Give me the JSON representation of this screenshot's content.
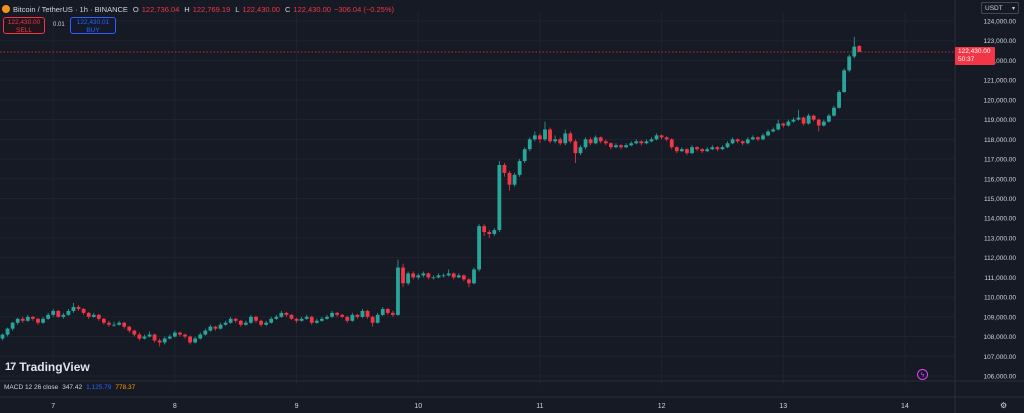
{
  "header": {
    "symbol": "Bitcoin / TetherUS · 1h · BINANCE",
    "open_label": "O",
    "open_value": "122,736.04",
    "high_label": "H",
    "high_value": "122,769.19",
    "low_label": "L",
    "low_value": "122,430.00",
    "close_label": "C",
    "close_value": "122,430.00",
    "change": "−306.04 (−0.25%)"
  },
  "trade": {
    "sell_price": "122,430.00",
    "sell_label": "SELL",
    "spread": "0.01",
    "buy_price": "122,430.01",
    "buy_label": "BUY"
  },
  "currency": "USDT",
  "current_price": {
    "value": "122,430.00",
    "countdown": "50:37"
  },
  "brand": "TradingView",
  "indicator": {
    "name": "MACD 12 26 close",
    "v1": "347.42",
    "v2": "1,125.79",
    "v3": "778.37"
  },
  "colors": {
    "background": "#161a25",
    "up": "#26a69a",
    "down": "#f23645",
    "grid": "#1f2330",
    "axis_text": "#d1d4dc"
  },
  "icons": [
    "bitcoin-icon",
    "chevron-down-icon",
    "alert-icon",
    "gear-icon"
  ],
  "chart_data": {
    "type": "candlestick",
    "interval": "1h",
    "ylim": [
      105800,
      124300
    ],
    "y_ticks": [
      106000,
      107000,
      108000,
      109000,
      110000,
      111000,
      112000,
      113000,
      114000,
      115000,
      116000,
      117000,
      118000,
      119000,
      120000,
      121000,
      122000,
      123000,
      124000
    ],
    "y_tick_labels": [
      "106,000.00",
      "107,000.00",
      "108,000.00",
      "109,000.00",
      "110,000.00",
      "111,000.00",
      "112,000.00",
      "113,000.00",
      "114,000.00",
      "115,000.00",
      "116,000.00",
      "117,000.00",
      "118,000.00",
      "119,000.00",
      "120,000.00",
      "121,000.00",
      "122,000.00",
      "123,000.00",
      "124,000.00"
    ],
    "x_day_labels": [
      "7",
      "8",
      "9",
      "10",
      "11",
      "12",
      "13",
      "14"
    ],
    "x_day_index": [
      10,
      34,
      58,
      82,
      106,
      130,
      154,
      178
    ],
    "last_close": 122430,
    "closes": [
      108100,
      108400,
      108700,
      108900,
      108800,
      109000,
      108900,
      108700,
      108900,
      109100,
      109300,
      109000,
      109100,
      109300,
      109500,
      109400,
      109200,
      109000,
      109100,
      108900,
      108700,
      108600,
      108600,
      108700,
      108500,
      108300,
      108100,
      107900,
      108000,
      108100,
      107800,
      107700,
      107900,
      108000,
      108200,
      108100,
      108000,
      107700,
      107900,
      108100,
      108300,
      108500,
      108400,
      108600,
      108700,
      108900,
      108800,
      108600,
      108700,
      109000,
      108800,
      108600,
      108700,
      108900,
      109000,
      109200,
      109100,
      108900,
      108800,
      108900,
      109000,
      108700,
      108800,
      108900,
      109000,
      109200,
      109100,
      109000,
      108800,
      109100,
      109000,
      109300,
      109000,
      108700,
      109100,
      109400,
      109200,
      109100,
      111500,
      110700,
      111200,
      111000,
      111100,
      111200,
      111000,
      111000,
      111100,
      111100,
      111200,
      111000,
      111100,
      110900,
      110700,
      111400,
      113600,
      113300,
      113200,
      113400,
      116700,
      116300,
      115700,
      116200,
      116900,
      117500,
      118000,
      118200,
      118000,
      118500,
      117900,
      118000,
      117800,
      118300,
      117900,
      117300,
      117600,
      118000,
      117800,
      118100,
      117900,
      117800,
      117600,
      117700,
      117600,
      117700,
      117800,
      117900,
      117800,
      117900,
      118000,
      118200,
      118100,
      118000,
      117600,
      117400,
      117500,
      117300,
      117600,
      117500,
      117400,
      117500,
      117600,
      117500,
      117600,
      117800,
      118000,
      117900,
      117800,
      118000,
      118100,
      118000,
      118200,
      118400,
      118500,
      118800,
      118700,
      118900,
      119000,
      119100,
      118800,
      119200,
      119000,
      118700,
      118900,
      119200,
      119600,
      120400,
      121500,
      122200,
      122700,
      122430
    ],
    "candles": [
      [
        107900,
        108150,
        107800,
        108100
      ],
      [
        108100,
        108450,
        108000,
        108400
      ],
      [
        108400,
        108750,
        108300,
        108700
      ],
      [
        108700,
        108950,
        108600,
        108900
      ],
      [
        108900,
        109000,
        108700,
        108800
      ],
      [
        108800,
        109100,
        108750,
        109000
      ],
      [
        109000,
        109050,
        108800,
        108900
      ],
      [
        108900,
        108950,
        108600,
        108700
      ],
      [
        108700,
        109000,
        108650,
        108900
      ],
      [
        108900,
        109200,
        108850,
        109100
      ],
      [
        109100,
        109400,
        109000,
        109300
      ],
      [
        109300,
        109350,
        108950,
        109000
      ],
      [
        109000,
        109200,
        108900,
        109100
      ],
      [
        109100,
        109400,
        109050,
        109300
      ],
      [
        109300,
        109700,
        109200,
        109500
      ],
      [
        109500,
        109600,
        109300,
        109400
      ],
      [
        109400,
        109450,
        109100,
        109200
      ],
      [
        109200,
        109250,
        108900,
        109000
      ],
      [
        109000,
        109200,
        108950,
        109100
      ],
      [
        109100,
        109150,
        108800,
        108900
      ],
      [
        108900,
        108950,
        108600,
        108700
      ],
      [
        108700,
        108800,
        108500,
        108600
      ],
      [
        108600,
        108750,
        108500,
        108600
      ],
      [
        108600,
        108800,
        108550,
        108700
      ],
      [
        108700,
        108750,
        108400,
        108500
      ],
      [
        108500,
        108550,
        108200,
        108300
      ],
      [
        108300,
        108350,
        108000,
        108100
      ],
      [
        108100,
        108200,
        107800,
        107900
      ],
      [
        107900,
        108100,
        107850,
        108000
      ],
      [
        108000,
        108250,
        107950,
        108100
      ],
      [
        108100,
        108150,
        107700,
        107800
      ],
      [
        107800,
        107900,
        107500,
        107700
      ],
      [
        107700,
        108000,
        107600,
        107900
      ],
      [
        107900,
        108100,
        107850,
        108000
      ],
      [
        108000,
        108300,
        107950,
        108200
      ],
      [
        108200,
        108250,
        108000,
        108100
      ],
      [
        108100,
        108150,
        107900,
        108000
      ],
      [
        108000,
        108050,
        107600,
        107700
      ],
      [
        107700,
        108000,
        107650,
        107900
      ],
      [
        107900,
        108200,
        107850,
        108100
      ],
      [
        108100,
        108400,
        108050,
        108300
      ],
      [
        108300,
        108600,
        108250,
        108500
      ],
      [
        108500,
        108550,
        108300,
        108400
      ],
      [
        108400,
        108700,
        108350,
        108600
      ],
      [
        108600,
        108800,
        108550,
        108700
      ],
      [
        108700,
        109000,
        108650,
        108900
      ],
      [
        108900,
        108950,
        108700,
        108800
      ],
      [
        108800,
        108850,
        108500,
        108600
      ],
      [
        108600,
        108800,
        108550,
        108700
      ],
      [
        108700,
        109100,
        108650,
        109000
      ],
      [
        109000,
        109050,
        108700,
        108800
      ],
      [
        108800,
        108850,
        108500,
        108600
      ],
      [
        108600,
        108800,
        108550,
        108700
      ],
      [
        108700,
        109000,
        108650,
        108900
      ],
      [
        108900,
        109100,
        108850,
        109000
      ],
      [
        109000,
        109300,
        108950,
        109200
      ],
      [
        109200,
        109250,
        109000,
        109100
      ],
      [
        109100,
        109150,
        108850,
        108900
      ],
      [
        108900,
        108950,
        108700,
        108800
      ],
      [
        108800,
        109000,
        108750,
        108900
      ],
      [
        108900,
        109100,
        108850,
        109000
      ],
      [
        109000,
        109050,
        108600,
        108700
      ],
      [
        108700,
        108900,
        108650,
        108800
      ],
      [
        108800,
        109000,
        108750,
        108900
      ],
      [
        108900,
        109100,
        108850,
        109000
      ],
      [
        109000,
        109300,
        108950,
        109200
      ],
      [
        109200,
        109250,
        109000,
        109100
      ],
      [
        109100,
        109150,
        108950,
        109000
      ],
      [
        109000,
        109050,
        108700,
        108800
      ],
      [
        108800,
        109200,
        108750,
        109100
      ],
      [
        109100,
        109150,
        108900,
        109000
      ],
      [
        109000,
        109400,
        108950,
        109300
      ],
      [
        109300,
        109350,
        108900,
        109000
      ],
      [
        109000,
        109050,
        108500,
        108700
      ],
      [
        108700,
        109200,
        108650,
        109100
      ],
      [
        109100,
        109500,
        109050,
        109400
      ],
      [
        109400,
        109450,
        109100,
        109200
      ],
      [
        109200,
        109300,
        109000,
        109100
      ],
      [
        109100,
        111900,
        109050,
        111500
      ],
      [
        111500,
        111700,
        110500,
        110700
      ],
      [
        110700,
        111300,
        110600,
        111200
      ],
      [
        111200,
        111300,
        110900,
        111000
      ],
      [
        111000,
        111200,
        110900,
        111100
      ],
      [
        111100,
        111300,
        111000,
        111200
      ],
      [
        111200,
        111250,
        110900,
        111000
      ],
      [
        111000,
        111100,
        110900,
        111000
      ],
      [
        111000,
        111200,
        110950,
        111100
      ],
      [
        111100,
        111200,
        111000,
        111100
      ],
      [
        111100,
        111400,
        111050,
        111200
      ],
      [
        111200,
        111250,
        110900,
        111000
      ],
      [
        111000,
        111200,
        110950,
        111100
      ],
      [
        111100,
        111150,
        110800,
        110900
      ],
      [
        110900,
        110950,
        110500,
        110700
      ],
      [
        110700,
        111500,
        110650,
        111400
      ],
      [
        111400,
        113700,
        111300,
        113600
      ],
      [
        113600,
        113700,
        113100,
        113300
      ],
      [
        113300,
        113400,
        113000,
        113200
      ],
      [
        113200,
        113500,
        113100,
        113400
      ],
      [
        113400,
        116900,
        113300,
        116700
      ],
      [
        116700,
        116800,
        116100,
        116300
      ],
      [
        116300,
        116400,
        115400,
        115700
      ],
      [
        115700,
        116300,
        115600,
        116200
      ],
      [
        116200,
        117000,
        116100,
        116900
      ],
      [
        116900,
        117600,
        116800,
        117500
      ],
      [
        117500,
        118100,
        117400,
        118000
      ],
      [
        118000,
        118400,
        117900,
        118200
      ],
      [
        118200,
        118300,
        117800,
        118000
      ],
      [
        118000,
        118900,
        117900,
        118500
      ],
      [
        118500,
        118600,
        117800,
        117900
      ],
      [
        117900,
        118200,
        117800,
        118000
      ],
      [
        118000,
        118100,
        117700,
        117800
      ],
      [
        117800,
        118500,
        117700,
        118300
      ],
      [
        118300,
        118400,
        117800,
        117900
      ],
      [
        117900,
        118000,
        116800,
        117300
      ],
      [
        117300,
        117700,
        117200,
        117600
      ],
      [
        117600,
        118100,
        117500,
        118000
      ],
      [
        118000,
        118100,
        117700,
        117800
      ],
      [
        117800,
        118200,
        117750,
        118100
      ],
      [
        118100,
        118150,
        117800,
        117900
      ],
      [
        117900,
        118000,
        117700,
        117800
      ],
      [
        117800,
        117850,
        117500,
        117600
      ],
      [
        117600,
        117800,
        117550,
        117700
      ],
      [
        117700,
        117750,
        117500,
        117600
      ],
      [
        117600,
        117800,
        117550,
        117700
      ],
      [
        117700,
        117900,
        117650,
        117800
      ],
      [
        117800,
        118000,
        117750,
        117900
      ],
      [
        117900,
        117950,
        117700,
        117800
      ],
      [
        117800,
        118000,
        117750,
        117900
      ],
      [
        117900,
        118100,
        117850,
        118000
      ],
      [
        118000,
        118300,
        117950,
        118200
      ],
      [
        118200,
        118250,
        118000,
        118100
      ],
      [
        118100,
        118150,
        117900,
        118000
      ],
      [
        118000,
        118050,
        117500,
        117600
      ],
      [
        117600,
        117650,
        117300,
        117400
      ],
      [
        117400,
        117600,
        117350,
        117500
      ],
      [
        117500,
        117550,
        117200,
        117300
      ],
      [
        117300,
        117700,
        117250,
        117600
      ],
      [
        117600,
        117650,
        117400,
        117500
      ],
      [
        117500,
        117550,
        117300,
        117400
      ],
      [
        117400,
        117600,
        117350,
        117500
      ],
      [
        117500,
        117700,
        117450,
        117600
      ],
      [
        117600,
        117650,
        117400,
        117500
      ],
      [
        117500,
        117700,
        117450,
        117600
      ],
      [
        117600,
        117900,
        117550,
        117800
      ],
      [
        117800,
        118100,
        117750,
        118000
      ],
      [
        118000,
        118050,
        117800,
        117900
      ],
      [
        117900,
        117950,
        117700,
        117800
      ],
      [
        117800,
        118100,
        117750,
        118000
      ],
      [
        118000,
        118200,
        117950,
        118100
      ],
      [
        118100,
        118150,
        117900,
        118000
      ],
      [
        118000,
        118300,
        117950,
        118200
      ],
      [
        118200,
        118500,
        118150,
        118400
      ],
      [
        118400,
        118600,
        118350,
        118500
      ],
      [
        118500,
        119000,
        118450,
        118800
      ],
      [
        118800,
        118850,
        118600,
        118700
      ],
      [
        118700,
        119000,
        118650,
        118900
      ],
      [
        118900,
        119100,
        118850,
        119000
      ],
      [
        119000,
        119500,
        118950,
        119100
      ],
      [
        119100,
        119150,
        118700,
        118800
      ],
      [
        118800,
        119300,
        118750,
        119200
      ],
      [
        119200,
        119250,
        118900,
        119000
      ],
      [
        119000,
        119050,
        118400,
        118700
      ],
      [
        118700,
        119000,
        118650,
        118900
      ],
      [
        118900,
        119300,
        118850,
        119200
      ],
      [
        119200,
        119700,
        119150,
        119600
      ],
      [
        119600,
        120500,
        119550,
        120400
      ],
      [
        120400,
        121600,
        120350,
        121500
      ],
      [
        121500,
        122300,
        121400,
        122200
      ],
      [
        122200,
        123200,
        122100,
        122700
      ],
      [
        122736,
        122769,
        122430,
        122430
      ]
    ]
  }
}
